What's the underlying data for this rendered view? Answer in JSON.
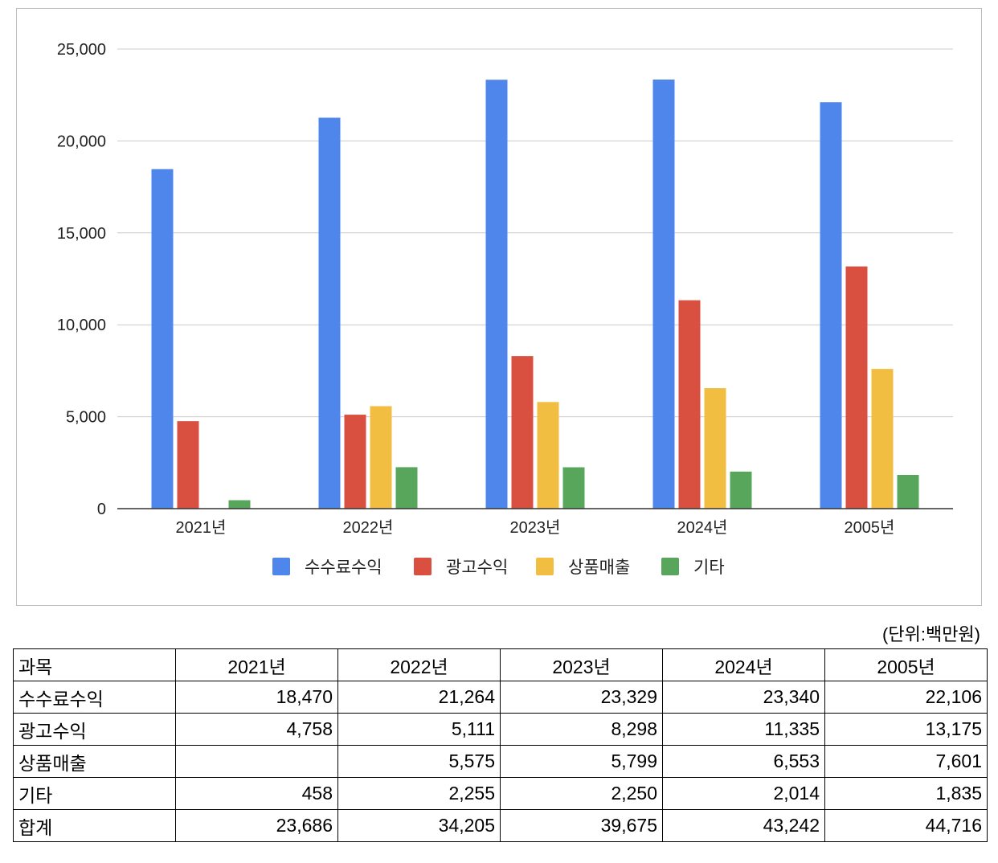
{
  "chart_data": {
    "type": "bar",
    "categories": [
      "2021년",
      "2022년",
      "2023년",
      "2024년",
      "2005년"
    ],
    "series": [
      {
        "name": "수수료수익",
        "color": "#4f86ec",
        "values": [
          18470,
          21264,
          23329,
          23340,
          22106
        ]
      },
      {
        "name": "광고수익",
        "color": "#d95040",
        "values": [
          4758,
          5111,
          8298,
          11335,
          13175
        ]
      },
      {
        "name": "상품매출",
        "color": "#f2be42",
        "values": [
          null,
          5575,
          5799,
          6553,
          7601
        ]
      },
      {
        "name": "기타",
        "color": "#58a55c",
        "values": [
          458,
          2255,
          2250,
          2014,
          1835
        ]
      }
    ],
    "yticks": [
      "0",
      "5,000",
      "10,000",
      "15,000",
      "20,000",
      "25,000"
    ],
    "ylim": [
      0,
      25000
    ],
    "grid": true,
    "legend": "bottom"
  },
  "unit_label": "(단위:백만원)",
  "table": {
    "headers": [
      "과목",
      "2021년",
      "2022년",
      "2023년",
      "2024년",
      "2005년"
    ],
    "rows": [
      [
        "수수료수익",
        "18,470",
        "21,264",
        "23,329",
        "23,340",
        "22,106"
      ],
      [
        "광고수익",
        "4,758",
        "5,111",
        "8,298",
        "11,335",
        "13,175"
      ],
      [
        "상품매출",
        "",
        "5,575",
        "5,799",
        "6,553",
        "7,601"
      ],
      [
        "기타",
        "458",
        "2,255",
        "2,250",
        "2,014",
        "1,835"
      ],
      [
        "합계",
        "23,686",
        "34,205",
        "39,675",
        "43,242",
        "44,716"
      ]
    ]
  }
}
